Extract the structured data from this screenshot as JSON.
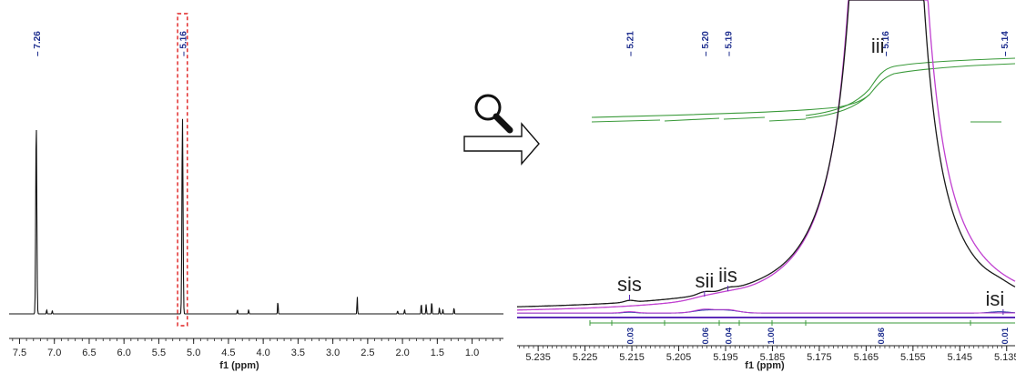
{
  "chart_data": [
    {
      "type": "line",
      "title": "",
      "xlabel": "f1 (ppm)",
      "ylabel": "",
      "x_reversed": true,
      "xlim": [
        7.65,
        0.55
      ],
      "x_ticks": [
        "7.5",
        "7.0",
        "6.5",
        "6.0",
        "5.5",
        "5.0",
        "4.5",
        "4.0",
        "3.5",
        "3.0",
        "2.5",
        "2.0",
        "1.5",
        "1.0"
      ],
      "peak_labels": [
        "7.26",
        "5.16"
      ],
      "peaks": [
        {
          "x": 7.26,
          "h": 0.86
        },
        {
          "x": 5.16,
          "h": 0.88
        },
        {
          "x": 7.11,
          "h": 0.02
        },
        {
          "x": 7.03,
          "h": 0.015
        },
        {
          "x": 4.37,
          "h": 0.02
        },
        {
          "x": 4.21,
          "h": 0.02
        },
        {
          "x": 3.79,
          "h": 0.06
        },
        {
          "x": 2.65,
          "h": 0.08
        },
        {
          "x": 2.07,
          "h": 0.015
        },
        {
          "x": 1.97,
          "h": 0.02
        },
        {
          "x": 1.73,
          "h": 0.05
        },
        {
          "x": 1.66,
          "h": 0.045
        },
        {
          "x": 1.58,
          "h": 0.06
        },
        {
          "x": 1.47,
          "h": 0.03
        },
        {
          "x": 1.42,
          "h": 0.02
        },
        {
          "x": 1.26,
          "h": 0.03
        }
      ],
      "highlight": {
        "xmin": 5.09,
        "xmax": 5.23
      }
    },
    {
      "type": "line",
      "title": "",
      "xlabel": "f1 (ppm)",
      "ylabel": "",
      "x_reversed": true,
      "xlim": [
        5.2395,
        5.1332
      ],
      "x_ticks": [
        "5.235",
        "5.225",
        "5.215",
        "5.205",
        "5.195",
        "5.185",
        "5.175",
        "5.165",
        "5.155",
        "5.145",
        "5.135"
      ],
      "peak_labels": [
        {
          "x": 5.2155,
          "text": "5.21"
        },
        {
          "x": 5.1995,
          "text": "5.20"
        },
        {
          "x": 5.1945,
          "text": "5.19"
        },
        {
          "x": 5.161,
          "text": "5.16"
        },
        {
          "x": 5.1355,
          "text": "5.14"
        }
      ],
      "region_labels": [
        {
          "x": 5.2155,
          "text": "sis"
        },
        {
          "x": 5.1995,
          "text": "sii"
        },
        {
          "x": 5.1945,
          "text": "iis"
        },
        {
          "x": 5.1625,
          "text": "iii"
        },
        {
          "x": 5.1375,
          "text": "isi"
        }
      ],
      "integrals": [
        {
          "x": 5.2155,
          "value": "0.03"
        },
        {
          "x": 5.1995,
          "value": "0.06"
        },
        {
          "x": 5.1945,
          "value": "0.04"
        },
        {
          "x": 5.1855,
          "value": "1.00"
        },
        {
          "x": 5.162,
          "value": "0.86"
        },
        {
          "x": 5.1355,
          "value": "0.01"
        }
      ],
      "series": [
        {
          "color": "#1a1a1a"
        },
        {
          "color": "#c040d0"
        },
        {
          "color": "#2b3fa8"
        },
        {
          "color": "#3a9a3a"
        }
      ]
    }
  ]
}
